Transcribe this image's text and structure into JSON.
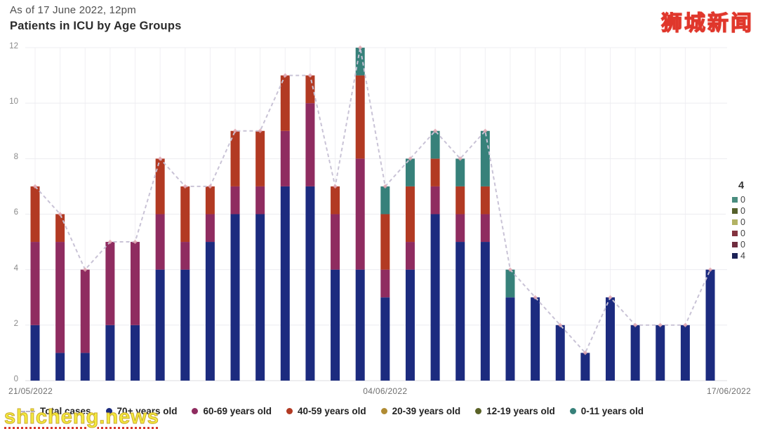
{
  "header": {
    "subtitle": "As of 17 June 2022, 12pm",
    "title": "Patients in ICU by Age Groups"
  },
  "branding": {
    "logo_text": "狮城新闻",
    "watermark_text": "shicheng.news"
  },
  "chart_data": {
    "type": "bar",
    "stacked": true,
    "title": "Patients in ICU by Age Groups",
    "ylim": [
      0,
      12
    ],
    "yticks": [
      0,
      2,
      4,
      6,
      8,
      10,
      12
    ],
    "grid": "horizontal and vertical, light gray",
    "num_bars": 28,
    "x_ticks": [
      {
        "label": "21/05/2022",
        "bar_index": 0,
        "align": "left"
      },
      {
        "label": "04/06/2022",
        "bar_index": 14,
        "align": "center"
      },
      {
        "label": "17/06/2022",
        "bar_index": 27,
        "align": "right"
      }
    ],
    "series": [
      {
        "name": "70+ years old",
        "color": "#1c2b7f",
        "values": [
          2,
          1,
          1,
          2,
          2,
          4,
          4,
          5,
          6,
          6,
          7,
          7,
          4,
          4,
          3,
          4,
          6,
          5,
          5,
          3,
          3,
          2,
          1,
          3,
          2,
          2,
          2,
          4
        ]
      },
      {
        "name": "60-69 years old",
        "color": "#8f2c60",
        "values": [
          3,
          4,
          3,
          3,
          3,
          2,
          1,
          1,
          1,
          1,
          2,
          3,
          2,
          4,
          1,
          1,
          1,
          1,
          1,
          0,
          0,
          0,
          0,
          0,
          0,
          0,
          0,
          0
        ]
      },
      {
        "name": "40-59 years old",
        "color": "#b23a23",
        "values": [
          2,
          1,
          0,
          0,
          0,
          2,
          2,
          1,
          2,
          2,
          2,
          1,
          1,
          3,
          2,
          2,
          1,
          1,
          1,
          0,
          0,
          0,
          0,
          0,
          0,
          0,
          0,
          0
        ]
      },
      {
        "name": "20-39 years old",
        "color": "#b08b33",
        "values": [
          0,
          0,
          0,
          0,
          0,
          0,
          0,
          0,
          0,
          0,
          0,
          0,
          0,
          0,
          0,
          0,
          0,
          0,
          0,
          0,
          0,
          0,
          0,
          0,
          0,
          0,
          0,
          0
        ]
      },
      {
        "name": "12-19 years old",
        "color": "#5a6227",
        "values": [
          0,
          0,
          0,
          0,
          0,
          0,
          0,
          0,
          0,
          0,
          0,
          0,
          0,
          0,
          0,
          0,
          0,
          0,
          0,
          0,
          0,
          0,
          0,
          0,
          0,
          0,
          0,
          0
        ]
      },
      {
        "name": "0-11 years old",
        "color": "#37817a",
        "values": [
          0,
          0,
          0,
          0,
          0,
          0,
          0,
          0,
          0,
          0,
          0,
          0,
          0,
          1,
          1,
          1,
          1,
          1,
          2,
          1,
          0,
          0,
          0,
          0,
          0,
          0,
          0,
          0
        ]
      }
    ],
    "line_series": {
      "name": "Total cases",
      "style": "dashed",
      "color": "#c9c3d6",
      "values": [
        7,
        6,
        4,
        5,
        5,
        8,
        7,
        7,
        9,
        9,
        11,
        11,
        7,
        12,
        7,
        8,
        9,
        8,
        9,
        4,
        3,
        2,
        1,
        3,
        2,
        2,
        2,
        4
      ]
    }
  },
  "tooltip": {
    "header": "4",
    "rows": [
      {
        "swatch_color": "#4a8d7f",
        "value": "0"
      },
      {
        "swatch_color": "#55602b",
        "value": "0"
      },
      {
        "swatch_color": "#b2b264",
        "value": "0"
      },
      {
        "swatch_color": "#83333f",
        "value": "0"
      },
      {
        "swatch_color": "#6f2d3f",
        "value": "0"
      },
      {
        "swatch_color": "#1c2256",
        "value": "4"
      }
    ]
  },
  "legend": {
    "items": [
      {
        "label": "Total cases",
        "marker": "dashed-line",
        "color": "#b9b3c6"
      },
      {
        "label": "70+ years old",
        "marker": "dot",
        "color": "#1c2b7f"
      },
      {
        "label": "60-69 years old",
        "marker": "dot",
        "color": "#8f2c60"
      },
      {
        "label": "40-59 years old",
        "marker": "dot",
        "color": "#b23a23"
      },
      {
        "label": "20-39 years old",
        "marker": "dot",
        "color": "#b08b33"
      },
      {
        "label": "12-19 years old",
        "marker": "dot",
        "color": "#5a6227"
      },
      {
        "label": "0-11 years old",
        "marker": "dot",
        "color": "#37817a"
      }
    ]
  }
}
